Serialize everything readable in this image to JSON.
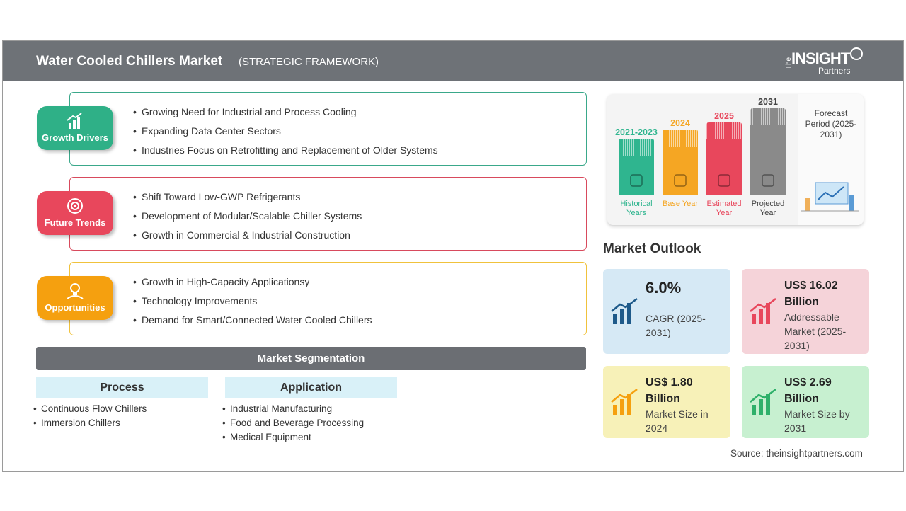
{
  "header": {
    "title": "Water Cooled Chillers Market",
    "subtitle": "(STRATEGIC FRAMEWORK)",
    "logo": {
      "prefix": "The",
      "brand": "INSIGHT",
      "suffix": "Partners"
    }
  },
  "framework": [
    {
      "label": "Growth Drivers",
      "items": [
        "Growing Need for Industrial and Process Cooling",
        "Expanding Data Center Sectors",
        "Industries Focus on Retrofitting and Replacement of Older Systems"
      ]
    },
    {
      "label": "Future Trends",
      "items": [
        "Shift Toward Low-GWP Refrigerants",
        "Development of Modular/Scalable Chiller Systems",
        "Growth in Commercial & Industrial Construction"
      ]
    },
    {
      "label": "Opportunities",
      "items": [
        "Growth in High-Capacity Applicationsy",
        "Technology Improvements",
        "Demand for Smart/Connected Water Cooled Chillers"
      ]
    }
  ],
  "segmentation": {
    "title": "Market Segmentation",
    "groups": [
      {
        "name": "Process",
        "items": [
          "Continuous Flow Chillers",
          "Immersion Chillers"
        ]
      },
      {
        "name": "Application",
        "items": [
          "Industrial Manufacturing",
          "Food and Beverage Processing",
          "Medical Equipment"
        ]
      }
    ]
  },
  "timeline": {
    "periods": [
      {
        "year": "2021-2023",
        "label": "Historical Years"
      },
      {
        "year": "2024",
        "label": "Base Year"
      },
      {
        "year": "2025",
        "label": "Estimated Year"
      },
      {
        "year": "2031",
        "label": "Projected Year"
      }
    ],
    "forecast": "Forecast Period (2025-2031)"
  },
  "outlook": {
    "title": "Market Outlook",
    "cards": [
      {
        "value": "6.0%",
        "label": "CAGR (2025-2031)"
      },
      {
        "value": "US$ 16.02 Billion",
        "label": "Addressable Market (2025-2031)"
      },
      {
        "value": "US$ 1.80 Billion",
        "label": "Market Size in 2024"
      },
      {
        "value": "US$ 2.69 Billion",
        "label": "Market Size by 2031"
      }
    ]
  },
  "source": "Source: theinsightpartners.com"
}
